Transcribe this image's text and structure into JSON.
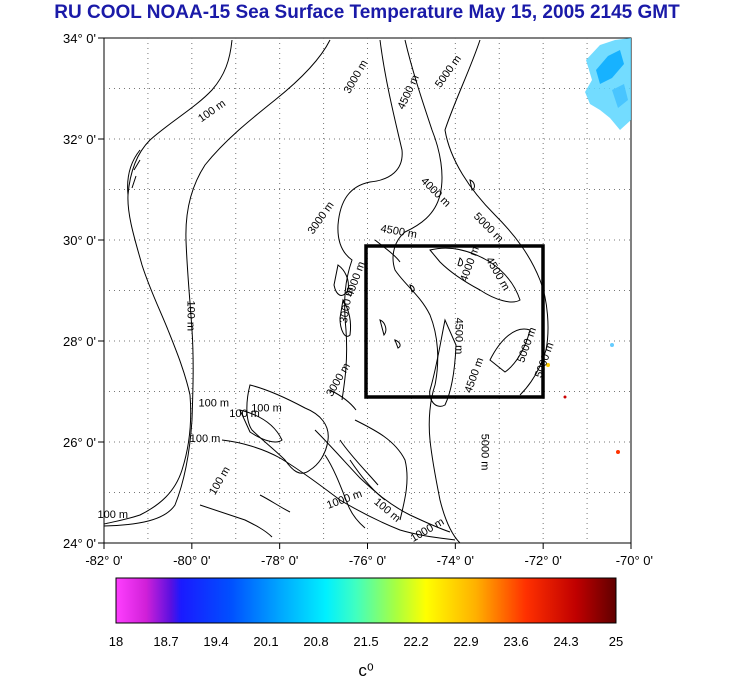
{
  "title": "RU COOL  NOAA-15 Sea Surface Temperature May 15, 2005 2145 GMT",
  "lat_ticks": [
    "34° 0'",
    "32° 0'",
    "30° 0'",
    "28° 0'",
    "26° 0'",
    "24° 0'"
  ],
  "lon_ticks": [
    "-82° 0'",
    "-80° 0'",
    "-78° 0'",
    "-76° 0'",
    "-74° 0'",
    "-72° 0'",
    "-70° 0'"
  ],
  "contour_labels": [
    {
      "text": "100 m",
      "lon": -79.5,
      "lat": 32.5,
      "angle": -35
    },
    {
      "text": "100 m",
      "lon": -80.1,
      "lat": 28.5,
      "angle": 90
    },
    {
      "text": "100 m",
      "lon": -79.5,
      "lat": 26.7,
      "angle": 0
    },
    {
      "text": "100 m",
      "lon": -78.8,
      "lat": 26.5,
      "angle": 0
    },
    {
      "text": "100 m",
      "lon": -78.3,
      "lat": 26.6,
      "angle": 0
    },
    {
      "text": "100 m",
      "lon": -79.7,
      "lat": 26.0,
      "angle": 0
    },
    {
      "text": "100 m",
      "lon": -79.3,
      "lat": 25.2,
      "angle": -60
    },
    {
      "text": "100 m",
      "lon": -81.8,
      "lat": 24.5,
      "angle": 0
    },
    {
      "text": "3000 m",
      "lon": -76.2,
      "lat": 33.2,
      "angle": -60
    },
    {
      "text": "4500 m",
      "lon": -75.0,
      "lat": 32.9,
      "angle": -65
    },
    {
      "text": "5000 m",
      "lon": -74.1,
      "lat": 33.3,
      "angle": -55
    },
    {
      "text": "4000 m",
      "lon": -74.5,
      "lat": 30.9,
      "angle": 45
    },
    {
      "text": "5000 m",
      "lon": -73.3,
      "lat": 30.2,
      "angle": 45
    },
    {
      "text": "3000 m",
      "lon": -77.0,
      "lat": 30.4,
      "angle": -55
    },
    {
      "text": "4500 m",
      "lon": -75.3,
      "lat": 30.1,
      "angle": 10
    },
    {
      "text": "4000 m",
      "lon": -73.6,
      "lat": 29.5,
      "angle": -70
    },
    {
      "text": "4500 m",
      "lon": -73.1,
      "lat": 29.3,
      "angle": 60
    },
    {
      "text": "4000 m",
      "lon": -76.2,
      "lat": 29.2,
      "angle": -70
    },
    {
      "text": "3000 m",
      "lon": -76.4,
      "lat": 28.7,
      "angle": -80
    },
    {
      "text": "4500 m",
      "lon": -74.0,
      "lat": 28.1,
      "angle": 90
    },
    {
      "text": "4500 m",
      "lon": -73.5,
      "lat": 27.3,
      "angle": -70
    },
    {
      "text": "5000 m",
      "lon": -72.3,
      "lat": 27.9,
      "angle": -70
    },
    {
      "text": "5000 m",
      "lon": -71.9,
      "lat": 27.6,
      "angle": -70
    },
    {
      "text": "3000 m",
      "lon": -76.6,
      "lat": 27.2,
      "angle": -60
    },
    {
      "text": "5000 m",
      "lon": -73.4,
      "lat": 25.8,
      "angle": 90
    },
    {
      "text": "1000 m",
      "lon": -76.5,
      "lat": 24.8,
      "angle": -20
    },
    {
      "text": "100 m",
      "lon": -75.6,
      "lat": 24.6,
      "angle": 40
    },
    {
      "text": "1000 m",
      "lon": -74.6,
      "lat": 24.2,
      "angle": -30
    }
  ],
  "colorbar": {
    "ticks": [
      "18",
      "18.7",
      "19.4",
      "20.1",
      "20.8",
      "21.5",
      "22.2",
      "22.9",
      "23.6",
      "24.3",
      "25"
    ],
    "unit": "c⁰"
  }
}
